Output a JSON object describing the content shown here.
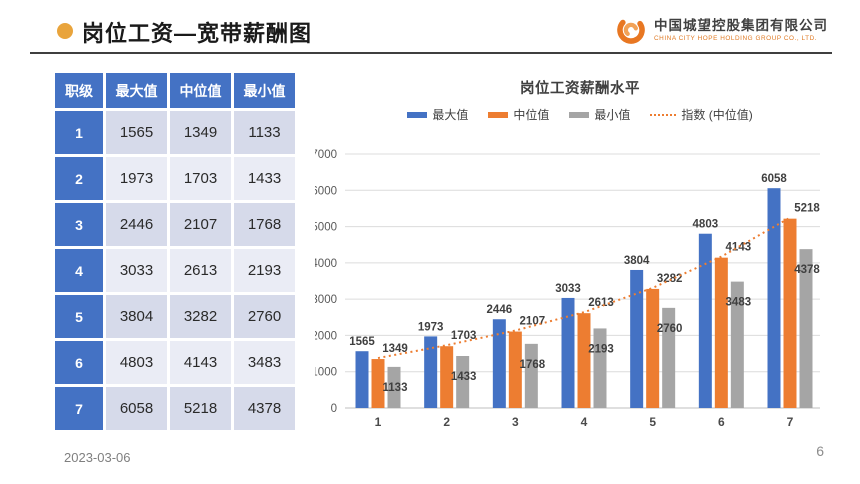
{
  "header": {
    "title": "岗位工资—宽带薪酬图",
    "logo": {
      "company_zh": "中国城望控股集团有限公司",
      "company_en": "CHINA CITY HOPE HOLDING GROUP CO., LTD."
    }
  },
  "footer": {
    "date": "2023-03-06",
    "page_number": "6"
  },
  "table": {
    "columns": [
      "职级",
      "最大值",
      "中位值",
      "最小值"
    ],
    "rows": [
      [
        "1",
        "1565",
        "1349",
        "1133"
      ],
      [
        "2",
        "1973",
        "1703",
        "1433"
      ],
      [
        "3",
        "2446",
        "2107",
        "1768"
      ],
      [
        "4",
        "3033",
        "2613",
        "2193"
      ],
      [
        "5",
        "3804",
        "3282",
        "2760"
      ],
      [
        "6",
        "4803",
        "4143",
        "3483"
      ],
      [
        "7",
        "6058",
        "5218",
        "4378"
      ]
    ]
  },
  "chart_data": {
    "type": "bar",
    "title": "岗位工资薪酬水平",
    "categories": [
      "1",
      "2",
      "3",
      "4",
      "5",
      "6",
      "7"
    ],
    "series": [
      {
        "name": "最大值",
        "color": "#4472C4",
        "values": [
          1565,
          1973,
          2446,
          3033,
          3804,
          4803,
          6058
        ]
      },
      {
        "name": "中位值",
        "color": "#ED7D31",
        "values": [
          1349,
          1703,
          2107,
          2613,
          3282,
          4143,
          5218
        ]
      },
      {
        "name": "最小值",
        "color": "#A5A5A5",
        "values": [
          1133,
          1433,
          1768,
          2193,
          2760,
          3483,
          4378
        ]
      }
    ],
    "line_series": {
      "name": "指数 (中位值)",
      "color": "#ED7D31",
      "style": "dotted",
      "values": [
        1349,
        1703,
        2107,
        2613,
        3282,
        4143,
        5218
      ]
    },
    "xlabel": "",
    "ylabel": "",
    "ylim": [
      0,
      7000
    ],
    "ytick_interval": 1000,
    "grid": true,
    "legend_position": "top"
  },
  "colors": {
    "bullet": "#E9A43C",
    "table_header_bg": "#4472C4",
    "table_rowhead_bg": "#4472C4",
    "table_row_odd_bg": "#D6DAEA",
    "table_row_even_bg": "#EAECF5",
    "grid_line": "#DCDCDC",
    "axis_line": "#BFBFBF",
    "tick_text": "#595959",
    "label_text": "#3f3f3f"
  }
}
